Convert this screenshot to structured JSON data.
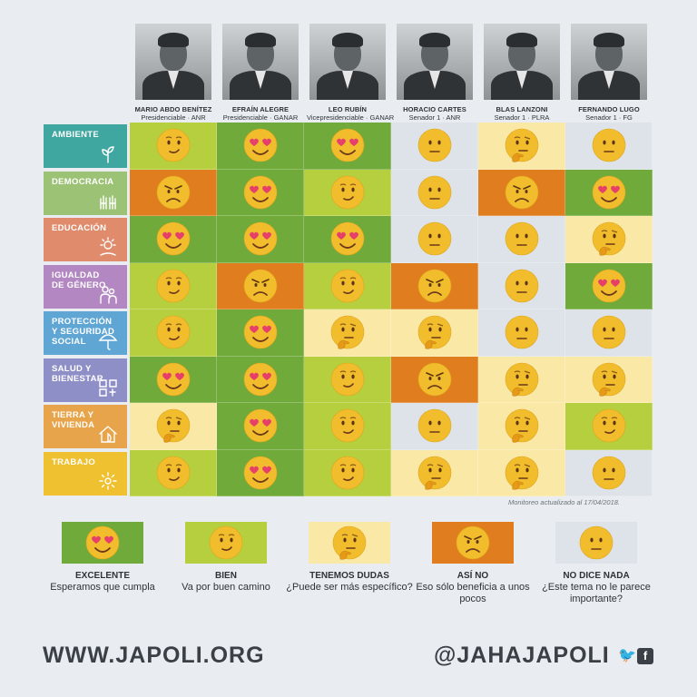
{
  "candidates": [
    {
      "name": "MARIO ABDO BENÍTEZ",
      "role": "Presidenciable · ANR"
    },
    {
      "name": "EFRAÍN ALEGRE",
      "role": "Presidenciable · GANAR"
    },
    {
      "name": "LEO RUBÍN",
      "role": "Vicepresidenciable · GANAR"
    },
    {
      "name": "HORACIO CARTES",
      "role": "Senador 1 · ANR"
    },
    {
      "name": "BLAS LANZONI",
      "role": "Senador 1 · PLRA"
    },
    {
      "name": "FERNANDO LUGO",
      "role": "Senador 1 · FG"
    }
  ],
  "themes": [
    {
      "label": "AMBIENTE",
      "color": "#3fa7a0",
      "icon": "sprout-icon",
      "ratings": [
        "bien",
        "excelente",
        "excelente",
        "nada",
        "dudas",
        "nada"
      ]
    },
    {
      "label": "DEMOCRACIA",
      "color": "#9cc276",
      "icon": "raised-hands-icon",
      "ratings": [
        "asi_no",
        "excelente",
        "bien",
        "nada",
        "asi_no",
        "excelente"
      ]
    },
    {
      "label": "EDUCACIÓN",
      "color": "#e08b6c",
      "icon": "sun-book-icon",
      "ratings": [
        "excelente",
        "excelente",
        "excelente",
        "nada",
        "nada",
        "dudas"
      ]
    },
    {
      "label": "IGUALDAD\nDE GÉNERO",
      "color": "#b388c2",
      "icon": "people-icon",
      "ratings": [
        "bien",
        "asi_no",
        "bien",
        "asi_no",
        "nada",
        "excelente"
      ]
    },
    {
      "label": "PROTECCIÓN\nY SEGURIDAD\nSOCIAL",
      "color": "#5fa6d4",
      "icon": "umbrella-icon",
      "ratings": [
        "bien",
        "excelente",
        "dudas",
        "dudas",
        "nada",
        "nada"
      ]
    },
    {
      "label": "SALUD Y\nBIENESTAR",
      "color": "#8f8fc7",
      "icon": "health-icon",
      "ratings": [
        "excelente",
        "excelente",
        "bien",
        "asi_no",
        "dudas",
        "dudas"
      ]
    },
    {
      "label": "TIERRA Y\nVIVIENDA",
      "color": "#e8a44a",
      "icon": "house-leaf-icon",
      "ratings": [
        "dudas",
        "excelente",
        "bien",
        "nada",
        "dudas",
        "bien"
      ]
    },
    {
      "label": "TRABAJO",
      "color": "#efc02f",
      "icon": "gear-icon",
      "ratings": [
        "bien",
        "excelente",
        "bien",
        "dudas",
        "dudas",
        "nada"
      ]
    }
  ],
  "rating_colors": {
    "excelente": "#6faa3a",
    "bien": "#b6cf3e",
    "dudas": "#fae8a6",
    "asi_no": "#e07d1f",
    "nada": "#dde3e8"
  },
  "updated": "Monitoreo actualizado al 17/04/2018.",
  "legend": [
    {
      "key": "excelente",
      "title": "EXCELENTE",
      "desc": "Esperamos que cumpla"
    },
    {
      "key": "bien",
      "title": "BIEN",
      "desc": "Va por buen camino"
    },
    {
      "key": "dudas",
      "title": "TENEMOS DUDAS",
      "desc": "¿Puede ser más específico?"
    },
    {
      "key": "asi_no",
      "title": "ASÍ NO",
      "desc": "Eso sólo beneficia a unos pocos"
    },
    {
      "key": "nada",
      "title": "NO DICE NADA",
      "desc": "¿Este tema no le parece importante?"
    }
  ],
  "footer": {
    "website": "WWW.JAPOLI.ORG",
    "handle": "@JAHAJAPOLI"
  }
}
